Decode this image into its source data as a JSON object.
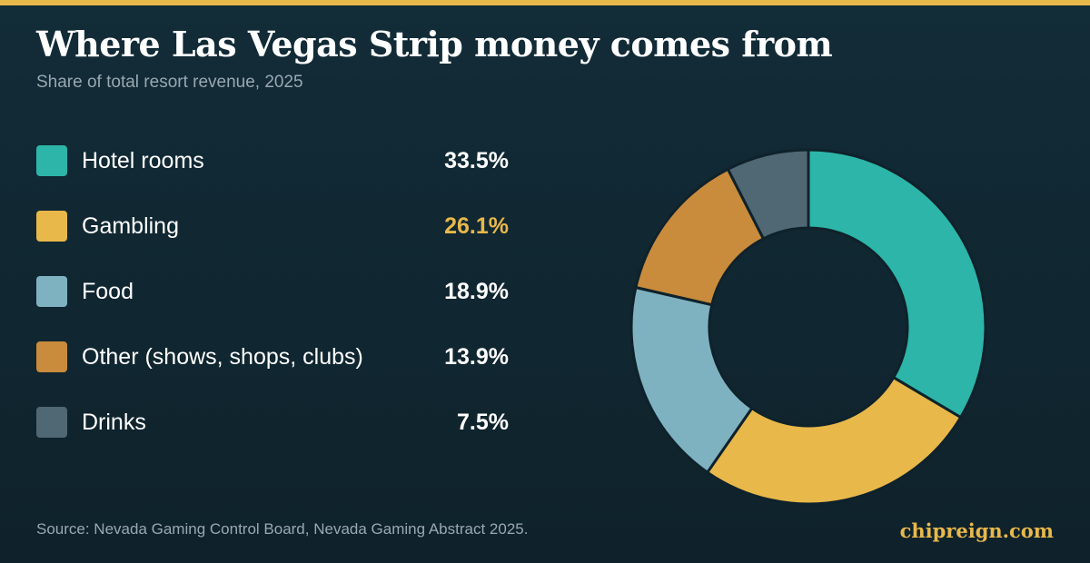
{
  "header": {
    "title": "Where Las Vegas Strip money comes from",
    "subtitle": "Share of total resort revenue, 2025"
  },
  "chart_data": {
    "type": "pie",
    "variant": "donut",
    "title": "Where Las Vegas Strip money comes from",
    "subtitle": "Share of total resort revenue, 2025",
    "legend_position": "left",
    "start_angle": "top, clockwise",
    "highlight": "Gambling",
    "slices": [
      {
        "label": "Hotel rooms",
        "value": 33.5,
        "display": "33.5%",
        "color": "#2cb5a8"
      },
      {
        "label": "Gambling",
        "value": 26.1,
        "display": "26.1%",
        "color": "#e8b84a"
      },
      {
        "label": "Food",
        "value": 18.9,
        "display": "18.9%",
        "color": "#7fb2c0"
      },
      {
        "label": "Other (shows, shops, clubs)",
        "value": 13.9,
        "display": "13.9%",
        "color": "#c98b3c"
      },
      {
        "label": "Drinks",
        "value": 7.5,
        "display": "7.5%",
        "color": "#4f6873"
      }
    ]
  },
  "footer": {
    "source": "Source: Nevada Gaming Control Board, Nevada Gaming Abstract 2025.",
    "brand": "chipreign.com"
  },
  "colors": {
    "background": "#122c38",
    "accent": "#e8b84a",
    "muted_text": "#98a8b1",
    "slice_border": "#0f222b"
  }
}
